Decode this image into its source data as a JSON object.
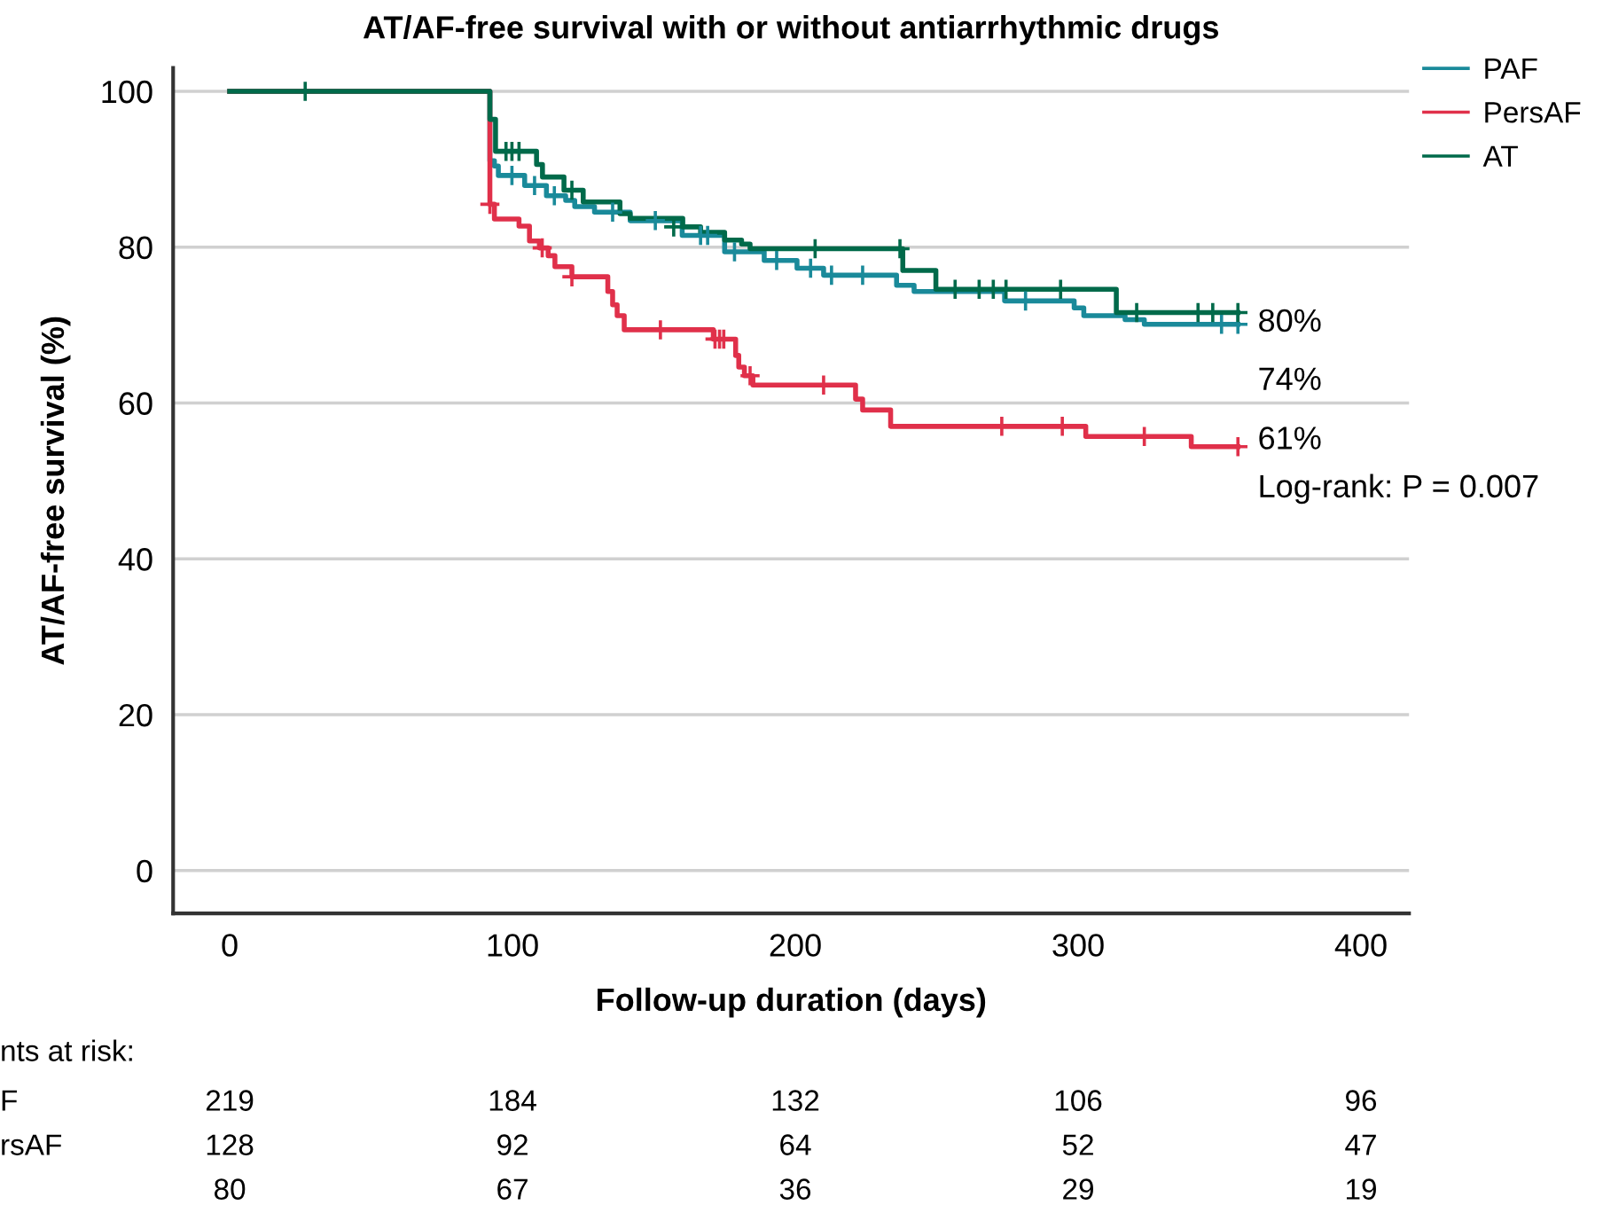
{
  "chart_data": {
    "type": "step",
    "title": "AT/AF-free survival with or without antiarrhythmic drugs",
    "xlabel": "Follow-up duration (days)",
    "ylabel": "AT/AF-free survival (%)",
    "xlim": [
      -20,
      417
    ],
    "ylim": [
      -5.5,
      103
    ],
    "xticks": [
      0,
      100,
      200,
      300,
      400
    ],
    "yticks": [
      0,
      20,
      40,
      60,
      80,
      100
    ],
    "grid": "y",
    "legend": "top right",
    "line_style": "solid",
    "series": [
      {
        "name": "PAF",
        "color": "#1a8a9a",
        "x": [
          0,
          92,
          93.6,
          95,
          104.3,
          112,
          118.8,
          122,
          129,
          141.6,
          160,
          175,
          189,
          200.6,
          210,
          235.8,
          242,
          274,
          298.6,
          302,
          316.6,
          323.4,
          356.5
        ],
        "values": [
          100,
          91.1,
          90.4,
          89.2,
          87.9,
          86.6,
          86.0,
          85.2,
          84.5,
          83.4,
          81.5,
          79.4,
          78.3,
          77.3,
          76.4,
          75.1,
          74.3,
          73.1,
          72.2,
          71.2,
          70.7,
          70.1,
          70.1
        ]
      },
      {
        "name": "PersAF",
        "color": "#e0304a",
        "x": [
          0,
          92,
          93.6,
          102.3,
          106,
          109.5,
          112.6,
          115,
          121,
          133.7,
          135.4,
          137,
          139.5,
          171,
          178.9,
          180,
          182,
          185,
          221.3,
          223.8,
          233.7,
          302.7,
          340,
          356.5
        ],
        "values": [
          100,
          85.5,
          83.6,
          82.7,
          80.8,
          79.9,
          78.9,
          77.5,
          76.2,
          74.3,
          72.6,
          71.2,
          69.4,
          68.2,
          66.1,
          64.6,
          63.5,
          62.3,
          60.5,
          59.1,
          57.0,
          55.7,
          54.4,
          54.4
        ]
      },
      {
        "name": "AT",
        "color": "#006a4a",
        "x": [
          0,
          92,
          94,
          108.5,
          110.6,
          118.2,
          125,
          138,
          141.6,
          160.2,
          166.5,
          175,
          181,
          184,
          238,
          249.7,
          313.5,
          356.5
        ],
        "values": [
          100,
          96.4,
          92.3,
          90.6,
          89.0,
          87.3,
          85.8,
          84.3,
          83.7,
          82.6,
          81.9,
          80.9,
          80.4,
          79.8,
          77.0,
          74.6,
          71.6,
          71.6
        ]
      },
      {
        "type": "scatter",
        "color": "#1a8a9a",
        "marker": "cross",
        "x": [
          99.8,
          107.8,
          114.8,
          135.4,
          150.5,
          166.5,
          169,
          178.5,
          193.4,
          205.4,
          212.8,
          223.8,
          281.4,
          350.7,
          356.5
        ],
        "values": [
          89.2,
          87.9,
          86.6,
          84.5,
          83.4,
          81.5,
          81.5,
          79.4,
          78.3,
          77.3,
          76.4,
          76.4,
          73.1,
          70.1,
          70.1
        ]
      },
      {
        "type": "scatter",
        "color": "#e0304a",
        "marker": "cross",
        "x": [
          92,
          110.5,
          121,
          152.3,
          171.6,
          173.2,
          174.7,
          184,
          210,
          273,
          294.4,
          323.4,
          356.5
        ],
        "values": [
          85.5,
          79.9,
          76.2,
          69.4,
          68.2,
          68.2,
          68.2,
          63.5,
          62.3,
          57.0,
          57.0,
          55.7,
          54.4
        ]
      },
      {
        "type": "scatter",
        "color": "#006a4a",
        "marker": "cross",
        "x": [
          26.7,
          97.7,
          99.8,
          102.3,
          121,
          157,
          207,
          237,
          256.5,
          265,
          270,
          274.5,
          293.8,
          320.7,
          342.4,
          347.6,
          356.5
        ],
        "values": [
          100,
          92.3,
          92.3,
          92.3,
          87.3,
          82.6,
          79.8,
          79.8,
          74.6,
          74.6,
          74.6,
          74.6,
          74.6,
          71.6,
          71.6,
          71.6,
          71.6
        ]
      }
    ],
    "annotations": [
      "80%",
      "74%",
      "61%",
      "Log-rank: P = 0.007",
      "nts at risk:",
      "F",
      "219",
      "184",
      "132",
      "106",
      "96",
      "rsAF",
      "128",
      "92",
      "64",
      "52",
      "47",
      "80",
      "67",
      "36",
      "29",
      "19"
    ]
  }
}
